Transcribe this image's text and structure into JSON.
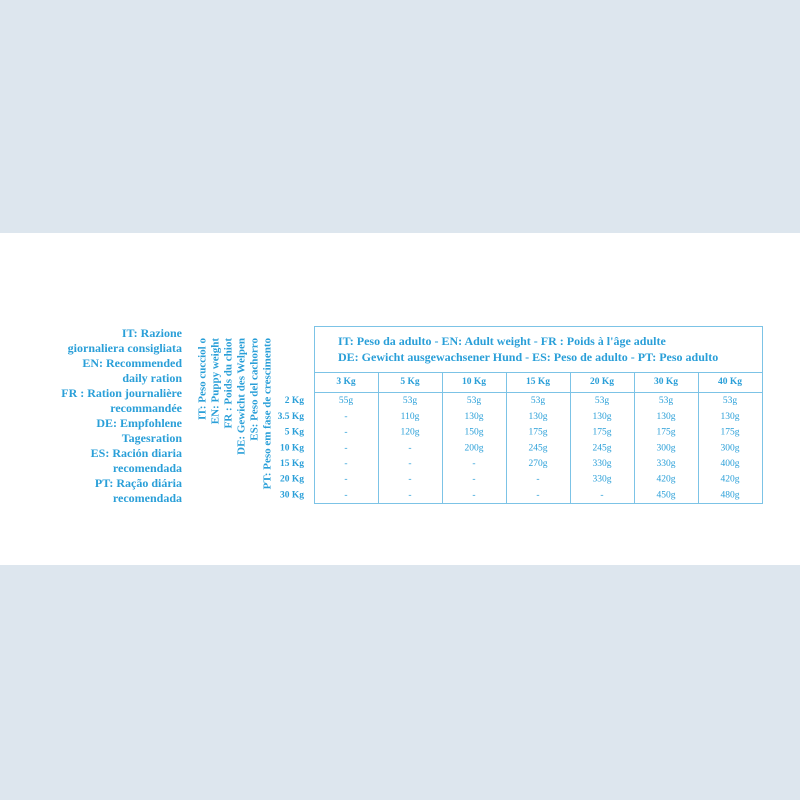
{
  "left_label": [
    "IT: Razione",
    "giornaliera consigliata",
    "EN: Recommended",
    "daily ration",
    "FR : Ration journalière",
    "recommandée",
    "DE: Empfohlene",
    "Tagesration",
    "ES: Ración diaria",
    "recomendada",
    "PT: Ração diária",
    "recomendada"
  ],
  "puppy_label": [
    "IT: Peso cucciol o",
    "EN: Puppy weight",
    "FR : Poids du chiot",
    "DE: Gewicht des Welpen",
    "ES: Peso del cachorro",
    "PT: Peso em fase de crescimento"
  ],
  "adult_label": [
    "IT: Peso da adulto - EN: Adult weight - FR : Poids à l'âge adulte",
    "DE: Gewicht ausgewachsener Hund - ES: Peso de adulto - PT: Peso adulto"
  ],
  "table": {
    "columns": [
      "3 Kg",
      "5 Kg",
      "10 Kg",
      "15 Kg",
      "20 Kg",
      "30 Kg",
      "40 Kg"
    ],
    "rows": [
      {
        "label": "2 Kg",
        "cells": [
          "55g",
          "53g",
          "53g",
          "53g",
          "53g",
          "53g",
          "53g"
        ]
      },
      {
        "label": "3.5 Kg",
        "cells": [
          "-",
          "110g",
          "130g",
          "130g",
          "130g",
          "130g",
          "130g"
        ]
      },
      {
        "label": "5 Kg",
        "cells": [
          "-",
          "120g",
          "150g",
          "175g",
          "175g",
          "175g",
          "175g"
        ]
      },
      {
        "label": "10 Kg",
        "cells": [
          "-",
          "-",
          "200g",
          "245g",
          "245g",
          "300g",
          "300g"
        ]
      },
      {
        "label": "15 Kg",
        "cells": [
          "-",
          "-",
          "-",
          "270g",
          "330g",
          "330g",
          "400g"
        ]
      },
      {
        "label": "20 Kg",
        "cells": [
          "-",
          "-",
          "-",
          "-",
          "330g",
          "420g",
          "420g"
        ]
      },
      {
        "label": "30 Kg",
        "cells": [
          "-",
          "-",
          "-",
          "-",
          "-",
          "450g",
          "480g"
        ]
      }
    ]
  }
}
